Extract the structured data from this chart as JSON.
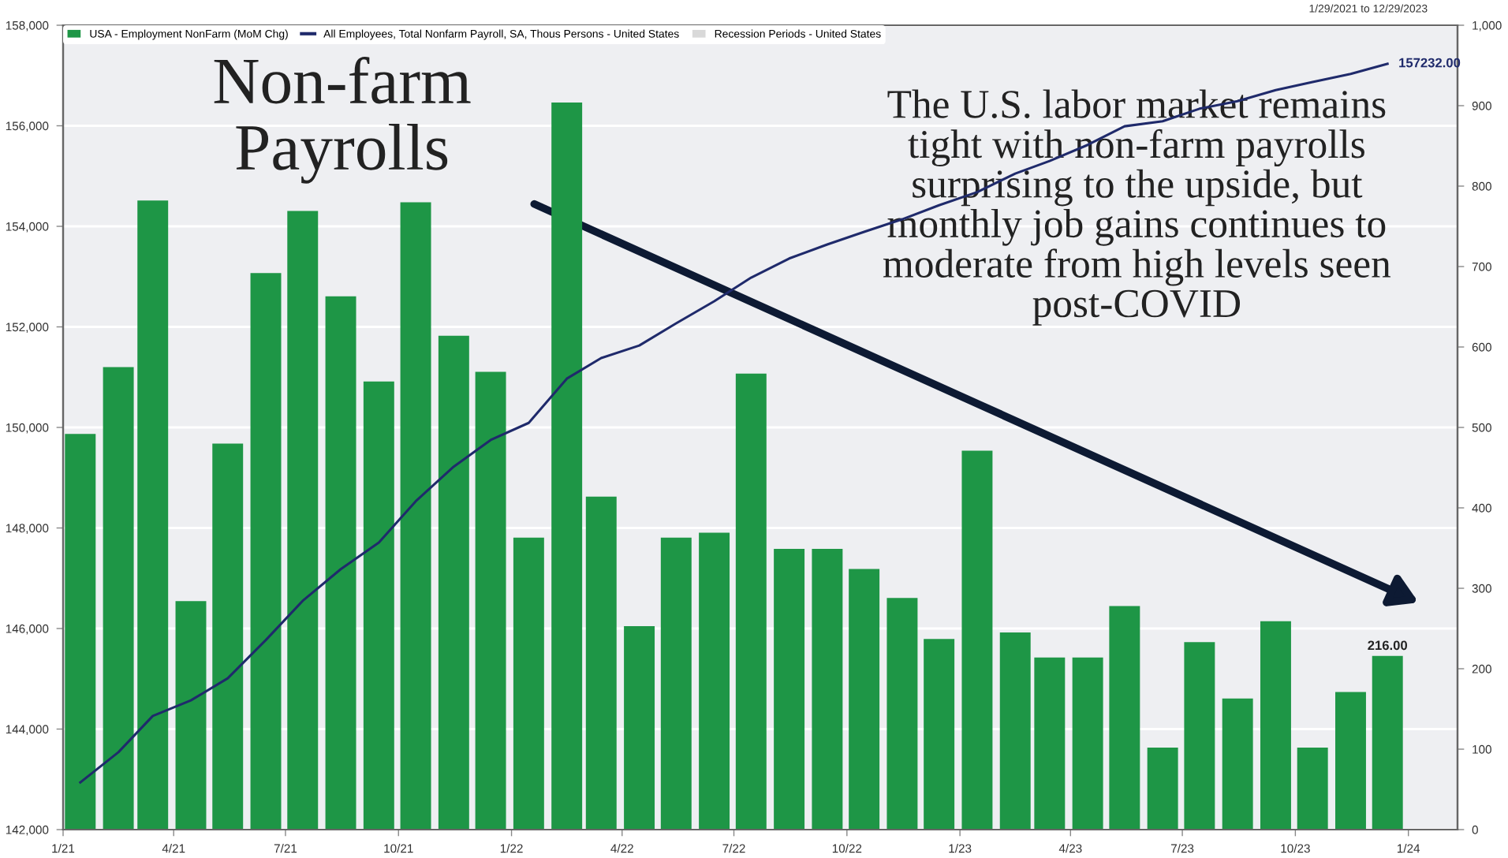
{
  "chart_data": {
    "type": "bar",
    "title": "Non-farm\nPayrolls",
    "subtitle": "1/29/2021 to 12/29/2023",
    "annotations": [
      "The U.S. labor market remains\ntight with non-farm payrolls\nsurprising to the upside, but\nmonthly job gains continues to\nmoderate from high levels seen\npost-COVID"
    ],
    "x": [
      "2021-01-15",
      "2021-02-15",
      "2021-03-15",
      "2021-04-15",
      "2021-05-15",
      "2021-06-15",
      "2021-07-15",
      "2021-08-15",
      "2021-09-15",
      "2021-10-15",
      "2021-11-15",
      "2021-12-15",
      "2022-01-15",
      "2022-02-15",
      "2022-03-15",
      "2022-04-15",
      "2022-05-15",
      "2022-06-15",
      "2022-07-15",
      "2022-08-15",
      "2022-09-15",
      "2022-10-15",
      "2022-11-15",
      "2022-12-15",
      "2023-01-15",
      "2023-02-15",
      "2023-03-15",
      "2023-04-15",
      "2023-05-15",
      "2023-06-15",
      "2023-07-15",
      "2023-08-15",
      "2023-09-15",
      "2023-10-15",
      "2023-11-15",
      "2023-12-15"
    ],
    "series": [
      {
        "name": "USA - Employment NonFarm (MoM Chg)",
        "axis": "y2",
        "color": "#1e9646",
        "values": [
          492,
          575,
          782,
          284,
          480,
          692,
          769,
          663,
          557,
          780,
          614,
          569,
          363,
          904,
          414,
          253,
          363,
          369,
          567,
          349,
          349,
          324,
          288,
          237,
          471,
          245,
          214,
          214,
          278,
          102,
          233,
          163,
          259,
          102,
          171,
          216
        ],
        "value_labels": [
          null,
          null,
          null,
          null,
          null,
          null,
          null,
          null,
          null,
          null,
          null,
          null,
          null,
          null,
          null,
          null,
          null,
          null,
          null,
          null,
          null,
          null,
          null,
          null,
          null,
          null,
          null,
          null,
          null,
          null,
          null,
          null,
          null,
          null,
          null,
          "216.00"
        ]
      },
      {
        "name": "All Employees, Total Nonfarm Payroll, SA, Thous Persons - United States",
        "type": "line",
        "axis": "y",
        "color": "#1f2a6b",
        "values": [
          142940,
          143540,
          144260,
          144570,
          145010,
          145770,
          146550,
          147180,
          147710,
          148530,
          149220,
          149750,
          150090,
          150970,
          151380,
          151630,
          152070,
          152510,
          152980,
          153360,
          153640,
          153890,
          154140,
          154420,
          154680,
          155050,
          155300,
          155620,
          155990,
          156090,
          156340,
          156490,
          156710,
          156870,
          157030,
          157232
        ],
        "value_labels": [
          null,
          null,
          null,
          null,
          null,
          null,
          null,
          null,
          null,
          null,
          null,
          null,
          null,
          null,
          null,
          null,
          null,
          null,
          null,
          null,
          null,
          null,
          null,
          null,
          null,
          null,
          null,
          null,
          null,
          null,
          null,
          null,
          null,
          null,
          null,
          "157232.00"
        ]
      },
      {
        "name": "Recession Periods - United States",
        "type": "bar",
        "axis": "y2",
        "color": "#d9d9d9",
        "values": [
          null,
          null,
          null,
          null,
          null,
          null,
          null,
          null,
          null,
          null,
          null,
          null,
          null,
          null,
          null,
          null,
          null,
          null,
          null,
          null,
          null,
          null,
          null,
          null,
          null,
          null,
          null,
          null,
          null,
          null,
          null,
          null,
          null,
          null,
          null,
          null
        ]
      }
    ],
    "xlim": [
      "2021-01-01",
      "2024-02-10"
    ],
    "xticks": [
      {
        "value": "2021-01-01",
        "label": "1/21"
      },
      {
        "value": "2021-04-01",
        "label": "4/21"
      },
      {
        "value": "2021-07-01",
        "label": "7/21"
      },
      {
        "value": "2021-10-01",
        "label": "10/21"
      },
      {
        "value": "2022-01-01",
        "label": "1/22"
      },
      {
        "value": "2022-04-01",
        "label": "4/22"
      },
      {
        "value": "2022-07-01",
        "label": "7/22"
      },
      {
        "value": "2022-10-01",
        "label": "10/22"
      },
      {
        "value": "2023-01-01",
        "label": "1/23"
      },
      {
        "value": "2023-04-01",
        "label": "4/23"
      },
      {
        "value": "2023-07-01",
        "label": "7/23"
      },
      {
        "value": "2023-10-01",
        "label": "10/23"
      },
      {
        "value": "2024-01-01",
        "label": "1/24"
      }
    ],
    "ylim": [
      142000,
      158000
    ],
    "yticks": [
      {
        "value": 142000,
        "label": "142,000"
      },
      {
        "value": 144000,
        "label": "144,000"
      },
      {
        "value": 146000,
        "label": "146,000"
      },
      {
        "value": 148000,
        "label": "148,000"
      },
      {
        "value": 150000,
        "label": "150,000"
      },
      {
        "value": 152000,
        "label": "152,000"
      },
      {
        "value": 154000,
        "label": "154,000"
      },
      {
        "value": 156000,
        "label": "156,000"
      },
      {
        "value": 158000,
        "label": "158,000"
      }
    ],
    "y2lim": [
      0,
      1000
    ],
    "y2ticks": [
      0,
      100,
      200,
      300,
      400,
      500,
      600,
      700,
      800,
      900,
      {
        "value": 1000,
        "label": "1,000"
      }
    ],
    "grid": "y",
    "legend": "top left"
  }
}
